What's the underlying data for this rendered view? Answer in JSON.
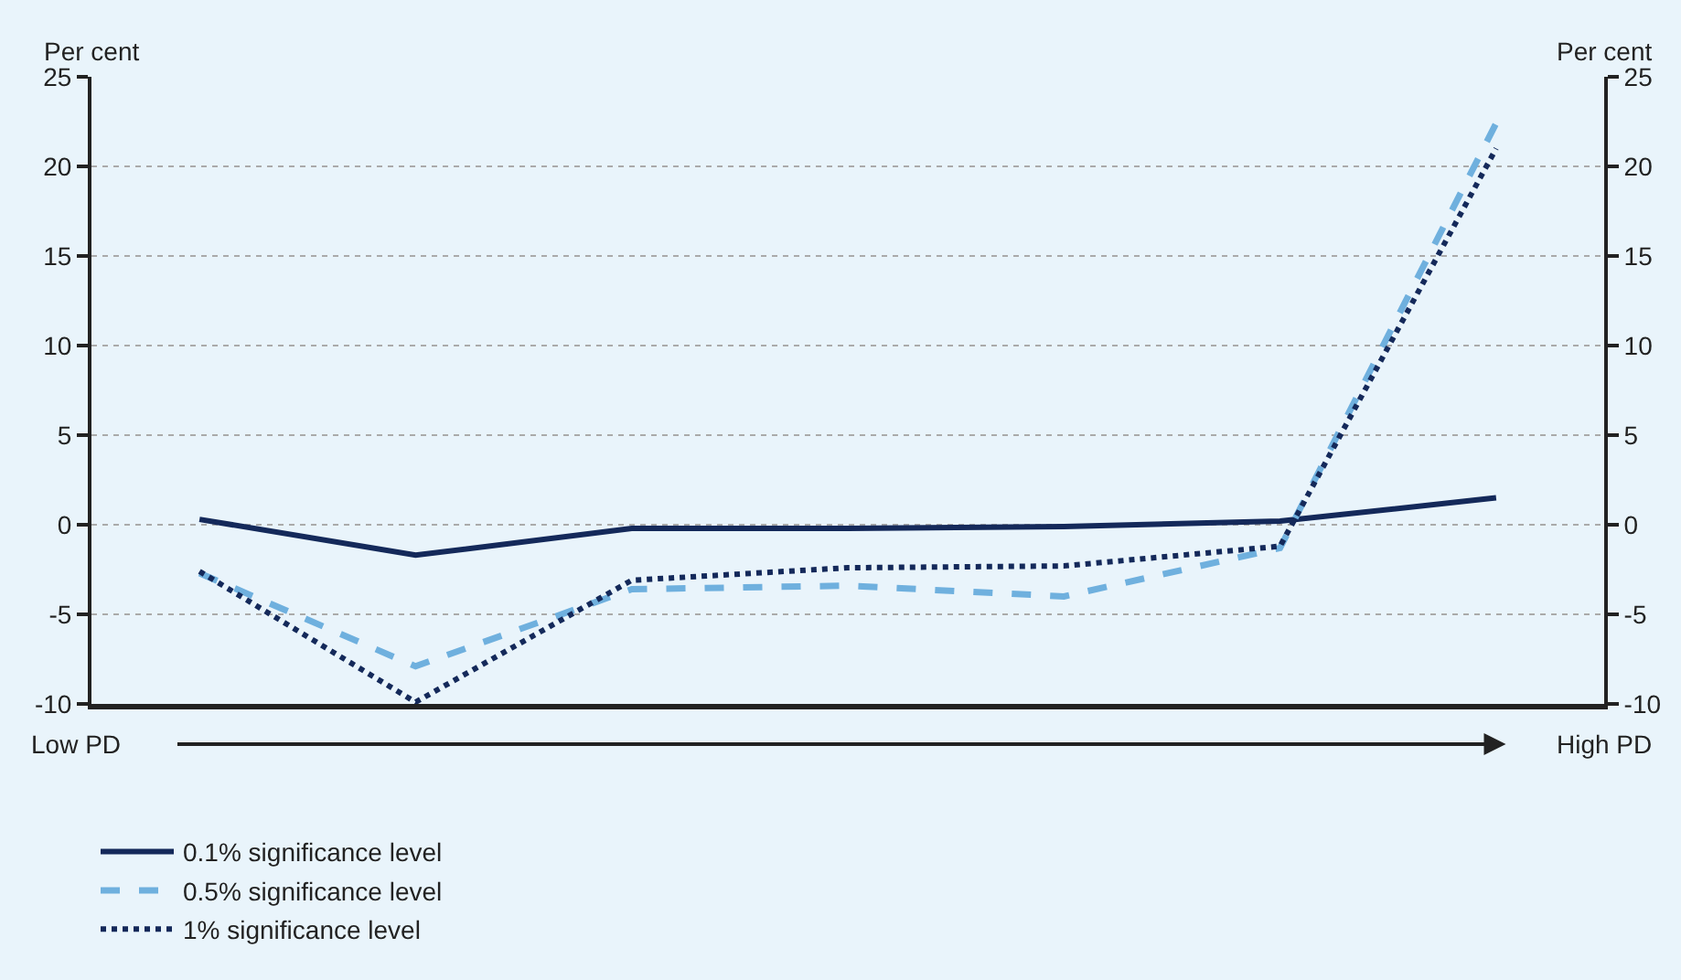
{
  "chart_data": {
    "type": "line",
    "ylabel": "Per cent",
    "y2label": "Per cent",
    "categories": [
      null,
      null,
      null,
      null,
      null,
      null,
      null
    ],
    "series": [
      {
        "name": "0.1% significance level",
        "color": "#14295a",
        "line_style": "solid",
        "values": [
          0.3,
          -1.7,
          -0.2,
          -0.2,
          -0.1,
          0.2,
          1.5
        ]
      },
      {
        "name": "0.5% significance level",
        "color": "#6fb0de",
        "line_style": "dashed",
        "values": [
          -2.7,
          -7.9,
          -3.6,
          -3.4,
          -4.0,
          -1.3,
          22.4
        ]
      },
      {
        "name": "1% significance level",
        "color": "#14295a",
        "line_style": "dotted",
        "values": [
          -2.6,
          -9.9,
          -3.1,
          -2.4,
          -2.3,
          -1.2,
          21.0
        ]
      }
    ],
    "ylim": [
      -10,
      25
    ],
    "yticks": [
      -10,
      -5,
      0,
      5,
      10,
      15,
      20,
      25
    ],
    "y2lim": [
      -10,
      25
    ],
    "y2ticks": [
      -10,
      -5,
      0,
      5,
      10,
      15,
      20,
      25
    ],
    "annotations": [
      "Low PD",
      "High PD"
    ],
    "grid": "y",
    "legend": "bottom",
    "marker": "none"
  }
}
